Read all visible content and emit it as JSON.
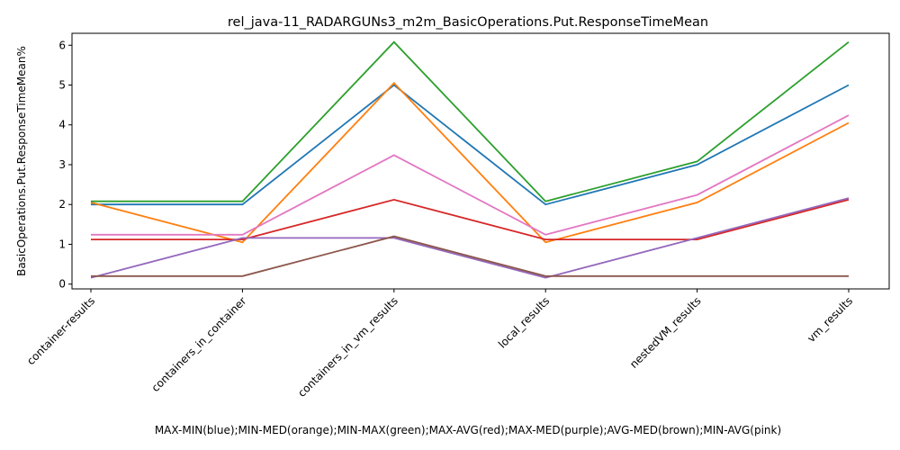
{
  "chart_data": {
    "type": "line",
    "title": "rel_java-11_RADARGUNs3_m2m_BasicOperations.Put.ResponseTimeMean",
    "xlabel": "MAX-MIN(blue);MIN-MED(orange);MIN-MAX(green);MAX-AVG(red);MAX-MED(purple);AVG-MED(brown);MIN-AVG(pink)",
    "ylabel": "BasicOperations.Put.ResponseTimeMean%",
    "categories": [
      "container-results",
      "containers_in_container",
      "containers_in_vm_results",
      "local_results",
      "nestedVM_results",
      "vm_results"
    ],
    "ylim": [
      -0.12,
      6.3
    ],
    "yticks": [
      "0",
      "1",
      "2",
      "3",
      "4",
      "5",
      "6"
    ],
    "grid": false,
    "legend": "none",
    "series": [
      {
        "color": "#1f77b4",
        "values": [
          2.0,
          2.0,
          5.0,
          2.0,
          3.0,
          5.0
        ]
      },
      {
        "color": "#ff7f0e",
        "values": [
          2.05,
          1.05,
          5.05,
          1.05,
          2.05,
          4.05
        ]
      },
      {
        "color": "#2ca02c",
        "values": [
          2.08,
          2.08,
          6.08,
          2.08,
          3.08,
          6.08
        ]
      },
      {
        "color": "#d62728",
        "values": [
          1.12,
          1.12,
          2.12,
          1.12,
          1.12,
          2.12
        ]
      },
      {
        "color": "#9467bd",
        "values": [
          0.16,
          1.16,
          1.16,
          0.16,
          1.16,
          2.16
        ]
      },
      {
        "color": "#8c564b",
        "values": [
          0.2,
          0.2,
          1.2,
          0.2,
          0.2,
          0.2
        ]
      },
      {
        "color": "#e377c2",
        "values": [
          1.24,
          1.24,
          3.24,
          1.24,
          2.24,
          4.24
        ]
      }
    ]
  }
}
